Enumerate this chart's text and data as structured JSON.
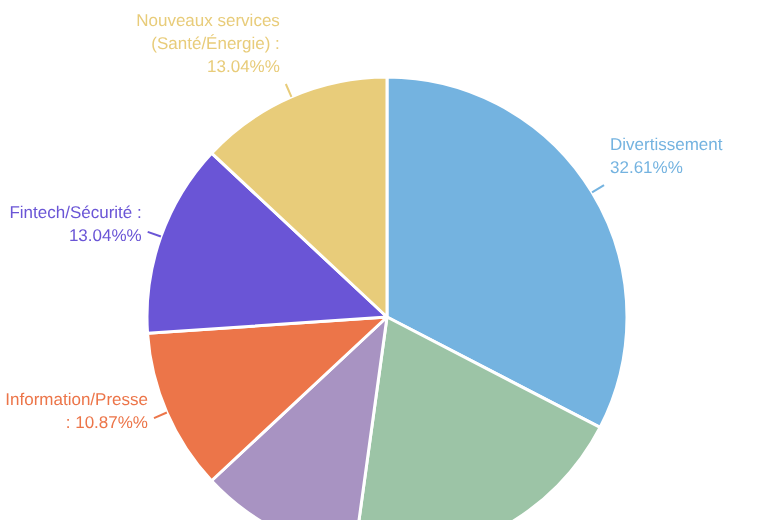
{
  "chart_data": {
    "type": "pie",
    "categories": [
      "Divertissement",
      null,
      null,
      "Information/Presse",
      "Fintech/Sécurité",
      "Nouveaux services (Santé/Énergie)"
    ],
    "values": [
      32.61,
      19.57,
      10.87,
      10.87,
      13.04,
      13.04
    ],
    "value_labels": [
      "32.61%%",
      null,
      null,
      ": 10.87%%",
      ": 13.04%%",
      ": 13.04%%"
    ],
    "colors": [
      "#74b3e0",
      "#9cc4a6",
      "#a893c2",
      "#ec7549",
      "#6a55d6",
      "#e8cc7a"
    ],
    "legend": false
  }
}
